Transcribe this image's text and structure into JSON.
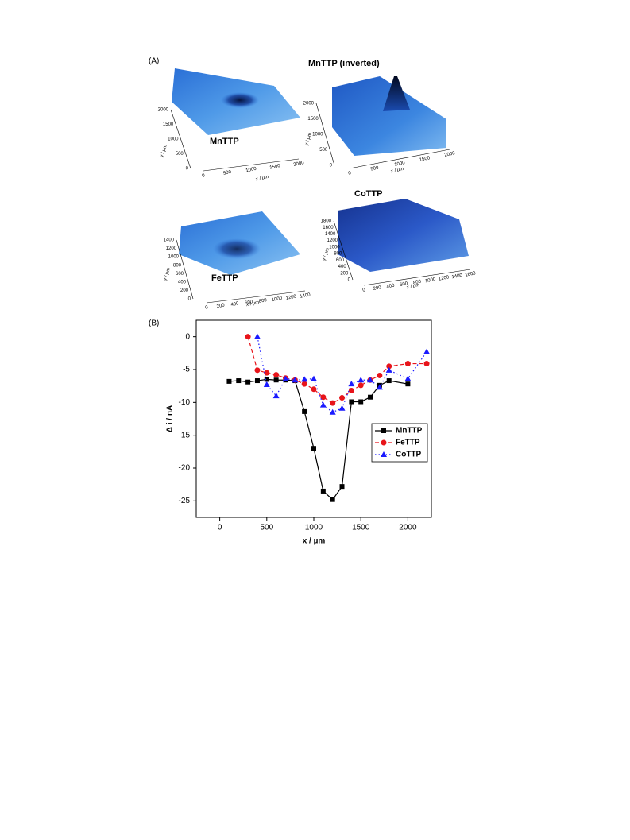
{
  "panel_a": {
    "label": "(A)",
    "plots": [
      {
        "title": "MnTTP",
        "xlabel": "x / µm",
        "ylabel": "y / µm",
        "xticks": [
          0,
          500,
          1000,
          1500,
          2000
        ],
        "yticks": [
          0,
          500,
          1000,
          1500,
          2000
        ]
      },
      {
        "title": "MnTTP (inverted)",
        "xlabel": "x / µm",
        "ylabel": "y / µm",
        "xticks": [
          0,
          500,
          1000,
          1500,
          2000
        ],
        "yticks": [
          0,
          500,
          1000,
          1500,
          2000
        ]
      },
      {
        "title": "FeTTP",
        "xlabel": "x / µm",
        "ylabel": "y / µm",
        "xticks": [
          0,
          200,
          400,
          600,
          800,
          1000,
          1200,
          1400
        ],
        "yticks": [
          0,
          200,
          400,
          600,
          800,
          1000,
          1200,
          1400
        ]
      },
      {
        "title": "CoTTP",
        "xlabel": "x / µm",
        "ylabel": "y / µm",
        "xticks": [
          0,
          200,
          400,
          600,
          800,
          1000,
          1200,
          1400,
          1600
        ],
        "yticks": [
          0,
          200,
          400,
          600,
          800,
          1000,
          1200,
          1400,
          1600,
          1800
        ]
      }
    ]
  },
  "chart_data": {
    "type": "line",
    "panel_label": "(B)",
    "xlabel": "x / µm",
    "ylabel": "Δ i / nA",
    "xlim": [
      -250,
      2250
    ],
    "ylim": [
      -27.5,
      2.5
    ],
    "xticks": [
      0,
      500,
      1000,
      1500,
      2000
    ],
    "yticks": [
      0,
      -5,
      -10,
      -15,
      -20,
      -25
    ],
    "legend": "right",
    "series": [
      {
        "name": "MnTTP",
        "color": "#000000",
        "line_style": "solid",
        "marker": "square",
        "x": [
          100,
          200,
          300,
          400,
          500,
          600,
          700,
          800,
          900,
          1000,
          1100,
          1200,
          1300,
          1400,
          1500,
          1600,
          1700,
          1800,
          2000
        ],
        "values": [
          -6.8,
          -6.7,
          -6.9,
          -6.7,
          -6.5,
          -6.6,
          -6.6,
          -6.7,
          -11.4,
          -17,
          -23.5,
          -24.8,
          -22.8,
          -9.9,
          -9.9,
          -9.2,
          -7.4,
          -6.7,
          -7.2
        ]
      },
      {
        "name": "FeTTP",
        "color": "#e8141a",
        "line_style": "dashed",
        "marker": "circle",
        "x": [
          300,
          400,
          500,
          600,
          700,
          800,
          900,
          1000,
          1100,
          1200,
          1300,
          1400,
          1500,
          1600,
          1700,
          1800,
          2000,
          2200
        ],
        "values": [
          0,
          -5.1,
          -5.5,
          -5.8,
          -6.3,
          -6.6,
          -7.2,
          -8.0,
          -9.2,
          -10.1,
          -9.3,
          -8.2,
          -7.4,
          -6.6,
          -5.9,
          -4.5,
          -4.1,
          -4.1
        ]
      },
      {
        "name": "CoTTP",
        "color": "#1a1aff",
        "line_style": "dotted",
        "marker": "triangle",
        "x": [
          400,
          500,
          600,
          700,
          800,
          900,
          1000,
          1100,
          1200,
          1300,
          1400,
          1500,
          1600,
          1700,
          1800,
          2000,
          2200
        ],
        "values": [
          0,
          -7.3,
          -9,
          -6.4,
          -6.6,
          -6.5,
          -6.4,
          -10.4,
          -11.5,
          -10.9,
          -7.2,
          -6.6,
          -6.6,
          -7.7,
          -5.1,
          -6.4,
          -2.3
        ]
      }
    ]
  }
}
